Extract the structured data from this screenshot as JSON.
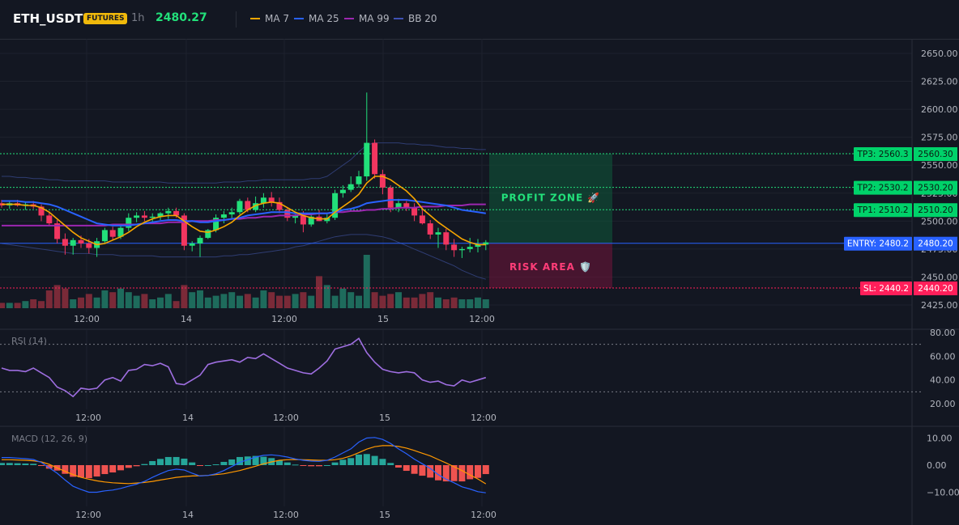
{
  "header": {
    "symbol": "ETH_USDT",
    "badge": "FUTURES",
    "timeframe": "1h",
    "price": "2480.27",
    "legend": [
      {
        "label": "MA 7",
        "color": "#f7a600"
      },
      {
        "label": "MA 25",
        "color": "#2962ff"
      },
      {
        "label": "MA 99",
        "color": "#9c27b0"
      },
      {
        "label": "BB 20",
        "color": "#3f51b5"
      }
    ]
  },
  "levels": {
    "tp3": {
      "tag": "TP3: 2560.3",
      "axis": "2560.30",
      "value": 2560.3
    },
    "tp2": {
      "tag": "TP2: 2530.2",
      "axis": "2530.20",
      "value": 2530.2
    },
    "tp1": {
      "tag": "TP1: 2510.2",
      "axis": "2510.20",
      "value": 2510.2
    },
    "entry": {
      "tag": "ENTRY: 2480.2",
      "axis": "2480.20",
      "value": 2480.2
    },
    "sl": {
      "tag": "SL: 2440.2",
      "axis": "2440.20",
      "value": 2440.2
    }
  },
  "zones": {
    "profit": "PROFIT ZONE 🚀",
    "risk": "RISK AREA 🛡️"
  },
  "rsi": {
    "label": "RSI (14)",
    "ticks": [
      "80.00",
      "60.00",
      "40.00",
      "20.00"
    ]
  },
  "macd": {
    "label": "MACD (12, 26, 9)",
    "ticks": [
      "10.00",
      "0.00",
      "−10.00"
    ]
  },
  "chart_data": {
    "type": "candlestick",
    "x_labels": [
      "12:00",
      "14",
      "12:00",
      "15",
      "12:00"
    ],
    "ylim": [
      2425,
      2660
    ],
    "y_ticks": [
      2650,
      2625,
      2600,
      2575,
      2550,
      2525,
      2500,
      2475,
      2450,
      2425
    ],
    "y_tick_labels": [
      "2650.00",
      "2625.00",
      "2600.00",
      "2575.00",
      "2550.00",
      "2525.00",
      "2500.00",
      "2475.00",
      "2450.00",
      "2425.00"
    ],
    "candles": [
      [
        2516,
        2519,
        2512,
        2514
      ],
      [
        2514,
        2518,
        2511,
        2516
      ],
      [
        2516,
        2519,
        2513,
        2514
      ],
      [
        2514,
        2517,
        2510,
        2515
      ],
      [
        2515,
        2518,
        2511,
        2513
      ],
      [
        2513,
        2515,
        2500,
        2505
      ],
      [
        2505,
        2508,
        2496,
        2498
      ],
      [
        2498,
        2501,
        2480,
        2484
      ],
      [
        2484,
        2489,
        2470,
        2478
      ],
      [
        2478,
        2485,
        2470,
        2483
      ],
      [
        2483,
        2487,
        2476,
        2480
      ],
      [
        2480,
        2484,
        2471,
        2476
      ],
      [
        2476,
        2485,
        2468,
        2482
      ],
      [
        2482,
        2494,
        2480,
        2492
      ],
      [
        2492,
        2495,
        2483,
        2486
      ],
      [
        2486,
        2496,
        2484,
        2494
      ],
      [
        2494,
        2507,
        2491,
        2503
      ],
      [
        2503,
        2508,
        2499,
        2505
      ],
      [
        2505,
        2509,
        2500,
        2503
      ],
      [
        2503,
        2507,
        2499,
        2504
      ],
      [
        2504,
        2508,
        2501,
        2507
      ],
      [
        2507,
        2512,
        2502,
        2509
      ],
      [
        2509,
        2512,
        2503,
        2505
      ],
      [
        2505,
        2507,
        2474,
        2478
      ],
      [
        2478,
        2482,
        2473,
        2480
      ],
      [
        2480,
        2487,
        2468,
        2485
      ],
      [
        2485,
        2493,
        2484,
        2492
      ],
      [
        2492,
        2506,
        2490,
        2503
      ],
      [
        2503,
        2509,
        2498,
        2506
      ],
      [
        2506,
        2512,
        2502,
        2508
      ],
      [
        2508,
        2520,
        2506,
        2518
      ],
      [
        2518,
        2521,
        2508,
        2510
      ],
      [
        2510,
        2522,
        2508,
        2516
      ],
      [
        2516,
        2525,
        2512,
        2521
      ],
      [
        2521,
        2526,
        2513,
        2517
      ],
      [
        2517,
        2521,
        2507,
        2510
      ],
      [
        2510,
        2512,
        2500,
        2503
      ],
      [
        2503,
        2506,
        2498,
        2505
      ],
      [
        2505,
        2509,
        2490,
        2497
      ],
      [
        2497,
        2506,
        2495,
        2504
      ],
      [
        2504,
        2510,
        2500,
        2500
      ],
      [
        2500,
        2506,
        2498,
        2503
      ],
      [
        2503,
        2528,
        2501,
        2525
      ],
      [
        2525,
        2532,
        2521,
        2528
      ],
      [
        2528,
        2540,
        2526,
        2533
      ],
      [
        2533,
        2545,
        2530,
        2540
      ],
      [
        2540,
        2615,
        2536,
        2570
      ],
      [
        2570,
        2573,
        2538,
        2542
      ],
      [
        2542,
        2546,
        2524,
        2530
      ],
      [
        2530,
        2532,
        2508,
        2512
      ],
      [
        2512,
        2520,
        2508,
        2516
      ],
      [
        2516,
        2518,
        2509,
        2512
      ],
      [
        2512,
        2516,
        2500,
        2505
      ],
      [
        2505,
        2512,
        2497,
        2498
      ],
      [
        2498,
        2501,
        2484,
        2488
      ],
      [
        2488,
        2494,
        2476,
        2490
      ],
      [
        2490,
        2493,
        2474,
        2479
      ],
      [
        2479,
        2484,
        2468,
        2474
      ],
      [
        2474,
        2477,
        2467,
        2475
      ],
      [
        2475,
        2485,
        2472,
        2477
      ],
      [
        2477,
        2484,
        2472,
        2479
      ],
      [
        2479,
        2483,
        2474,
        2481
      ]
    ],
    "ma7": [
      2515,
      2515,
      2515,
      2514,
      2514,
      2512,
      2508,
      2502,
      2496,
      2490,
      2485,
      2482,
      2479,
      2480,
      2483,
      2486,
      2490,
      2495,
      2499,
      2502,
      2504,
      2505,
      2505,
      2500,
      2495,
      2491,
      2490,
      2492,
      2495,
      2499,
      2505,
      2510,
      2514,
      2516,
      2517,
      2516,
      2512,
      2508,
      2505,
      2503,
      2502,
      2502,
      2508,
      2513,
      2518,
      2524,
      2534,
      2540,
      2540,
      2537,
      2532,
      2527,
      2520,
      2511,
      2505,
      2499,
      2494,
      2489,
      2484,
      2481,
      2479,
      2479
    ],
    "ma25": [
      2518,
      2518,
      2518,
      2517,
      2517,
      2516,
      2515,
      2513,
      2510,
      2507,
      2504,
      2501,
      2498,
      2497,
      2496,
      2496,
      2496,
      2497,
      2498,
      2499,
      2500,
      2501,
      2501,
      2500,
      2500,
      2499,
      2499,
      2500,
      2501,
      2502,
      2503,
      2505,
      2506,
      2507,
      2508,
      2508,
      2508,
      2507,
      2507,
      2507,
      2507,
      2507,
      2508,
      2510,
      2511,
      2513,
      2516,
      2517,
      2518,
      2519,
      2519,
      2519,
      2518,
      2517,
      2516,
      2515,
      2514,
      2512,
      2510,
      2509,
      2508,
      2507
    ],
    "ma99": [
      2496,
      2496,
      2496,
      2496,
      2496,
      2496,
      2496,
      2496,
      2496,
      2496,
      2496,
      2496,
      2496,
      2496,
      2497,
      2497,
      2497,
      2497,
      2498,
      2498,
      2498,
      2499,
      2499,
      2499,
      2500,
      2500,
      2500,
      2501,
      2501,
      2502,
      2502,
      2503,
      2503,
      2504,
      2504,
      2505,
      2505,
      2505,
      2506,
      2506,
      2507,
      2507,
      2508,
      2508,
      2509,
      2509,
      2510,
      2510,
      2511,
      2511,
      2512,
      2512,
      2512,
      2513,
      2513,
      2513,
      2514,
      2514,
      2514,
      2515,
      2515,
      2515
    ],
    "bb_upper": [
      2540,
      2540,
      2539,
      2539,
      2538,
      2538,
      2537,
      2537,
      2536,
      2536,
      2536,
      2536,
      2536,
      2536,
      2535,
      2535,
      2535,
      2535,
      2535,
      2535,
      2535,
      2534,
      2534,
      2534,
      2534,
      2534,
      2534,
      2534,
      2535,
      2535,
      2535,
      2536,
      2536,
      2537,
      2537,
      2537,
      2537,
      2537,
      2537,
      2538,
      2538,
      2540,
      2545,
      2550,
      2555,
      2562,
      2568,
      2570,
      2570,
      2570,
      2570,
      2569,
      2569,
      2568,
      2568,
      2567,
      2566,
      2566,
      2565,
      2565,
      2564,
      2564
    ],
    "bb_lower": [
      2480,
      2479,
      2478,
      2477,
      2476,
      2475,
      2474,
      2473,
      2472,
      2471,
      2471,
      2471,
      2470,
      2470,
      2470,
      2469,
      2469,
      2469,
      2469,
      2469,
      2468,
      2468,
      2468,
      2468,
      2468,
      2468,
      2468,
      2468,
      2469,
      2469,
      2470,
      2470,
      2471,
      2472,
      2473,
      2474,
      2475,
      2477,
      2478,
      2480,
      2482,
      2484,
      2486,
      2487,
      2488,
      2488,
      2488,
      2487,
      2486,
      2484,
      2481,
      2478,
      2475,
      2472,
      2469,
      2466,
      2463,
      2460,
      2456,
      2453,
      2450,
      2448
    ],
    "volumes": [
      3,
      3,
      3,
      4,
      5,
      4,
      10,
      13,
      11,
      5,
      6,
      8,
      6,
      10,
      9,
      11,
      9,
      7,
      8,
      5,
      6,
      8,
      4,
      13,
      9,
      10,
      6,
      7,
      8,
      9,
      7,
      8,
      6,
      10,
      9,
      7,
      7,
      8,
      9,
      7,
      18,
      13,
      7,
      11,
      9,
      7,
      30,
      9,
      7,
      8,
      9,
      6,
      6,
      8,
      9,
      6,
      5,
      6,
      5,
      5,
      6,
      5
    ],
    "rsi": [
      50,
      48,
      48,
      47,
      50,
      46,
      42,
      34,
      31,
      26,
      33,
      32,
      33,
      40,
      42,
      39,
      48,
      49,
      53,
      52,
      54,
      51,
      37,
      36,
      40,
      44,
      53,
      55,
      56,
      57,
      55,
      59,
      58,
      62,
      58,
      54,
      50,
      48,
      46,
      45,
      50,
      56,
      66,
      68,
      70,
      75,
      63,
      55,
      49,
      47,
      46,
      47,
      46,
      40,
      38,
      39,
      36,
      35,
      40,
      38,
      40,
      42
    ],
    "macd": [
      2.8,
      2.8,
      2.6,
      2.4,
      2.1,
      1.0,
      -1.0,
      -3.0,
      -5.5,
      -7.8,
      -9.0,
      -10.0,
      -10.0,
      -9.5,
      -9.2,
      -8.6,
      -7.8,
      -7.0,
      -6.0,
      -4.5,
      -3.2,
      -2.0,
      -1.5,
      -1.8,
      -3.0,
      -4.0,
      -3.8,
      -3.2,
      -2.0,
      -0.5,
      1.0,
      2.0,
      3.0,
      3.6,
      3.8,
      3.5,
      3.0,
      2.3,
      1.8,
      1.5,
      1.4,
      1.8,
      3.0,
      4.5,
      6.0,
      8.5,
      10.0,
      10.2,
      9.5,
      8.0,
      6.0,
      4.2,
      2.2,
      0.5,
      -1.2,
      -3.5,
      -5.2,
      -6.5,
      -8.0,
      -8.8,
      -9.8,
      -10.2
    ],
    "macd_signal": [
      2.0,
      2.0,
      1.9,
      1.8,
      1.6,
      1.2,
      0.3,
      -1.0,
      -2.3,
      -3.5,
      -4.5,
      -5.2,
      -5.8,
      -6.2,
      -6.5,
      -6.7,
      -6.8,
      -6.6,
      -6.4,
      -6.0,
      -5.5,
      -5.0,
      -4.5,
      -4.2,
      -4.0,
      -3.9,
      -3.8,
      -3.5,
      -3.2,
      -2.6,
      -2.0,
      -1.2,
      -0.4,
      0.5,
      1.2,
      1.8,
      2.0,
      2.1,
      2.0,
      1.9,
      1.8,
      1.8,
      2.0,
      2.5,
      3.4,
      4.6,
      5.9,
      6.8,
      7.2,
      7.2,
      6.9,
      6.3,
      5.4,
      4.4,
      3.4,
      2.1,
      0.8,
      -0.6,
      -2.0,
      -3.6,
      -5.1,
      -6.9
    ],
    "macd_hist": [
      0.8,
      0.8,
      0.7,
      0.6,
      0.5,
      -0.2,
      -1.3,
      -2.0,
      -3.2,
      -4.3,
      -4.5,
      -4.8,
      -4.2,
      -3.3,
      -2.7,
      -1.9,
      -1.0,
      -0.4,
      0.4,
      1.5,
      2.3,
      3.0,
      3.0,
      2.4,
      1.0,
      -0.1,
      0.0,
      0.3,
      1.2,
      2.1,
      3.0,
      3.2,
      3.4,
      3.1,
      2.6,
      1.7,
      1.0,
      0.2,
      -0.2,
      -0.4,
      -0.4,
      0.0,
      1.0,
      2.0,
      2.6,
      3.9,
      4.1,
      3.4,
      2.3,
      0.8,
      -0.9,
      -2.1,
      -3.2,
      -3.9,
      -4.6,
      -5.6,
      -6.0,
      -5.9,
      -6.0,
      -5.2,
      -4.7,
      -3.3
    ]
  }
}
